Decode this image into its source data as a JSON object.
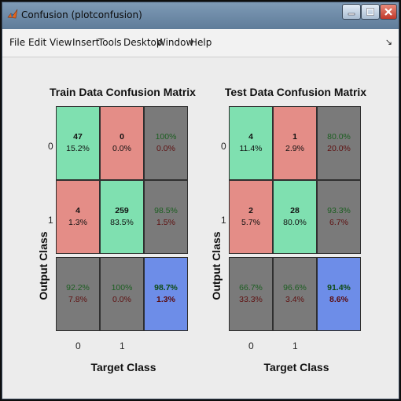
{
  "window": {
    "title": "Confusion (plotconfusion)"
  },
  "menu": {
    "items": [
      "File",
      "Edit",
      "View",
      "Insert",
      "Tools",
      "Desktop",
      "Window",
      "Help"
    ],
    "dock_glyph": "↘"
  },
  "colors": {
    "correct_cell": "#7fe0b0",
    "error_cell": "#e48d87",
    "summary_cell": "#7a7a7a",
    "overall_cell": "#6d8de8"
  },
  "chart_data": [
    {
      "type": "table",
      "title": "Train Data Confusion Matrix",
      "ylabel": "Output Class",
      "xlabel": "Target Class",
      "output_classes": [
        "0",
        "1"
      ],
      "target_classes": [
        "0",
        "1"
      ],
      "matrix": [
        [
          {
            "count": "47",
            "pct": "15.2%"
          },
          {
            "count": "0",
            "pct": "0.0%"
          },
          {
            "pct_correct": "100%",
            "pct_wrong": "0.0%"
          }
        ],
        [
          {
            "count": "4",
            "pct": "1.3%"
          },
          {
            "count": "259",
            "pct": "83.5%"
          },
          {
            "pct_correct": "98.5%",
            "pct_wrong": "1.5%"
          }
        ],
        [
          {
            "pct_correct": "92.2%",
            "pct_wrong": "7.8%"
          },
          {
            "pct_correct": "100%",
            "pct_wrong": "0.0%"
          },
          {
            "pct_correct": "98.7%",
            "pct_wrong": "1.3%"
          }
        ]
      ]
    },
    {
      "type": "table",
      "title": "Test Data Confusion Matrix",
      "ylabel": "Output Class",
      "xlabel": "Target Class",
      "output_classes": [
        "0",
        "1"
      ],
      "target_classes": [
        "0",
        "1"
      ],
      "matrix": [
        [
          {
            "count": "4",
            "pct": "11.4%"
          },
          {
            "count": "1",
            "pct": "2.9%"
          },
          {
            "pct_correct": "80.0%",
            "pct_wrong": "20.0%"
          }
        ],
        [
          {
            "count": "2",
            "pct": "5.7%"
          },
          {
            "count": "28",
            "pct": "80.0%"
          },
          {
            "pct_correct": "93.3%",
            "pct_wrong": "6.7%"
          }
        ],
        [
          {
            "pct_correct": "66.7%",
            "pct_wrong": "33.3%"
          },
          {
            "pct_correct": "96.6%",
            "pct_wrong": "3.4%"
          },
          {
            "pct_correct": "91.4%",
            "pct_wrong": "8.6%"
          }
        ]
      ]
    }
  ]
}
